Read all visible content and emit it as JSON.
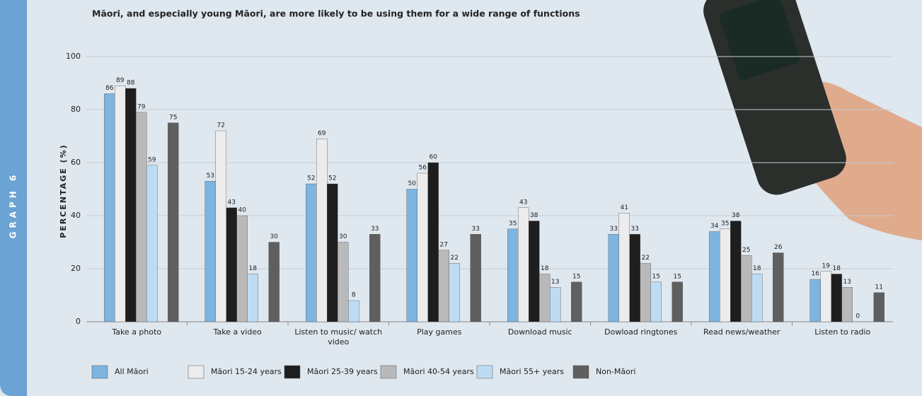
{
  "side_label": "GRAPH 6",
  "chart_data": {
    "type": "bar",
    "title": "Māori, and especially young Māori, are more likely to be using them for a wide range of functions",
    "y_label": "PERCENTAGE (%)",
    "categories": [
      "Take a photo",
      "Take a video",
      "Listen to music/ watch video",
      "Play games",
      "Download music",
      "Dowload ringtones",
      "Read news/weather",
      "Listen to radio"
    ],
    "series": [
      {
        "name": "All Māori",
        "color": "#7db4e0",
        "values": [
          86,
          53,
          52,
          50,
          35,
          33,
          34,
          16
        ]
      },
      {
        "name": "Māori 15-24 years",
        "color": "#ececec",
        "values": [
          89,
          72,
          69,
          56,
          43,
          41,
          35,
          19
        ]
      },
      {
        "name": "Māori 25-39 years",
        "color": "#1e1e1e",
        "values": [
          88,
          43,
          52,
          60,
          38,
          33,
          38,
          18
        ]
      },
      {
        "name": "Māori 40-54 years",
        "color": "#b9b9b9",
        "values": [
          79,
          40,
          30,
          27,
          18,
          22,
          25,
          13
        ]
      },
      {
        "name": "Māori 55+ years",
        "color": "#bddcf4",
        "values": [
          59,
          18,
          8,
          22,
          13,
          15,
          18,
          0
        ]
      },
      {
        "name": "Non-Māori",
        "color": "#5f5f5f",
        "values": [
          75,
          30,
          33,
          33,
          15,
          15,
          26,
          11
        ]
      }
    ],
    "ylim": [
      0,
      100
    ],
    "yticks": [
      0,
      20,
      40,
      60,
      80,
      100
    ],
    "grid": true,
    "legend": "bottom"
  }
}
